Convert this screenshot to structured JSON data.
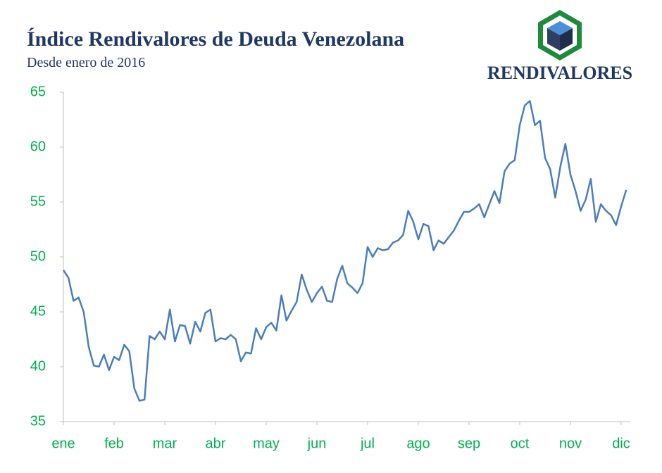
{
  "chart_data": {
    "type": "line",
    "title": "Índice Rendivalores de Deuda Venezolana",
    "subtitle": "Desde enero de 2016",
    "brand": "RENDIVALORES",
    "categories": [
      "ene",
      null,
      null,
      null,
      null,
      null,
      null,
      null,
      null,
      null,
      "feb",
      null,
      null,
      null,
      null,
      null,
      null,
      null,
      null,
      null,
      "mar",
      null,
      null,
      null,
      null,
      null,
      null,
      null,
      null,
      null,
      "abr",
      null,
      null,
      null,
      null,
      null,
      null,
      null,
      null,
      null,
      "may",
      null,
      null,
      null,
      null,
      null,
      null,
      null,
      null,
      null,
      "jun",
      null,
      null,
      null,
      null,
      null,
      null,
      null,
      null,
      null,
      "jul",
      null,
      null,
      null,
      null,
      null,
      null,
      null,
      null,
      null,
      "ago",
      null,
      null,
      null,
      null,
      null,
      null,
      null,
      null,
      null,
      "sep",
      null,
      null,
      null,
      null,
      null,
      null,
      null,
      null,
      null,
      "oct",
      null,
      null,
      null,
      null,
      null,
      null,
      null,
      null,
      null,
      "nov",
      null,
      null,
      null,
      null,
      null,
      null,
      null,
      null,
      null,
      "dic",
      null
    ],
    "series": [
      {
        "color": "#4a7ebb",
        "values": [
          48.8,
          48.1,
          46.0,
          46.3,
          45.0,
          41.8,
          40.1,
          40.0,
          41.1,
          39.7,
          40.9,
          40.6,
          42.0,
          41.4,
          38.0,
          36.9,
          37.0,
          42.8,
          42.5,
          43.2,
          42.5,
          45.2,
          42.3,
          43.8,
          43.7,
          42.1,
          44.1,
          43.2,
          44.9,
          45.2,
          42.3,
          42.6,
          42.5,
          42.9,
          42.5,
          40.5,
          41.3,
          41.2,
          43.5,
          42.5,
          43.6,
          44.0,
          43.3,
          46.5,
          44.2,
          45.1,
          45.9,
          48.4,
          47.0,
          45.9,
          46.7,
          47.3,
          46.0,
          45.9,
          48.0,
          49.2,
          47.6,
          47.2,
          46.7,
          47.6,
          50.9,
          50.0,
          50.8,
          50.6,
          50.7,
          51.3,
          51.5,
          52.0,
          54.2,
          53.2,
          51.6,
          53.0,
          52.8,
          50.6,
          51.5,
          51.2,
          51.8,
          52.4,
          53.3,
          54.1,
          54.1,
          54.4,
          54.8,
          53.6,
          54.8,
          56.0,
          54.9,
          57.8,
          58.5,
          58.8,
          62.0,
          63.8,
          64.2,
          62.0,
          62.4,
          59.0,
          58.0,
          55.4,
          58.2,
          60.3,
          57.5,
          56.0,
          54.2,
          55.2,
          57.1,
          53.2,
          54.8,
          54.2,
          53.8,
          52.9,
          54.6,
          56.1
        ]
      }
    ],
    "ylim": [
      35,
      65
    ],
    "yticks": [
      35,
      40,
      45,
      50,
      55,
      60,
      65
    ],
    "grid": false
  }
}
